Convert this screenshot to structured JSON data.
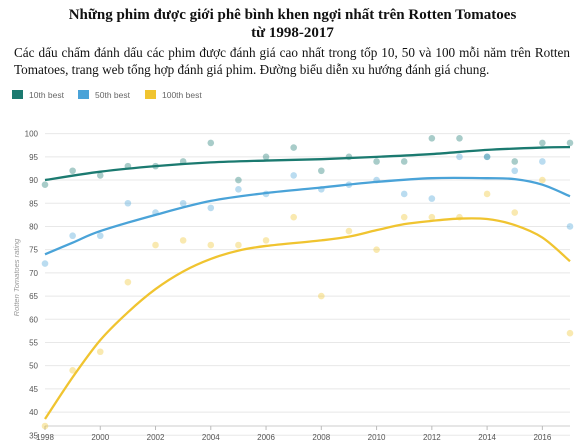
{
  "chart_data": {
    "type": "scatter",
    "title_line1": "Những phim được giới phê bình khen ngợi nhất trên Rotten Tomatoes",
    "title_line2": "từ 1998-2017",
    "subtitle": "Các dấu chấm đánh dấu các phim được đánh giá cao nhất trong tốp 10, 50 và 100 mỗi năm trên Rotten Tomatoes, trang web tổng hợp đánh giá phim. Đường biểu diễn xu hướng đánh giá chung.",
    "ylabel": "Rotten Tomatoes rating",
    "xlabel": "",
    "xlim": [
      1998,
      2017
    ],
    "ylim": [
      37,
      101
    ],
    "x_ticks": [
      1998,
      2000,
      2002,
      2004,
      2006,
      2008,
      2010,
      2012,
      2014,
      2016
    ],
    "y_ticks": [
      35,
      40,
      45,
      50,
      55,
      60,
      65,
      70,
      75,
      80,
      85,
      90,
      95,
      100
    ],
    "grid": true,
    "legend_position": "top-left",
    "series": [
      {
        "name": "10th best",
        "color": "#1b7a70",
        "points": [
          [
            1998,
            89
          ],
          [
            1999,
            92
          ],
          [
            2000,
            91
          ],
          [
            2001,
            93
          ],
          [
            2002,
            93
          ],
          [
            2003,
            94
          ],
          [
            2004,
            98
          ],
          [
            2005,
            90
          ],
          [
            2006,
            95
          ],
          [
            2007,
            97
          ],
          [
            2008,
            92
          ],
          [
            2009,
            95
          ],
          [
            2010,
            94
          ],
          [
            2011,
            94
          ],
          [
            2012,
            99
          ],
          [
            2013,
            99
          ],
          [
            2014,
            95
          ],
          [
            2015,
            94
          ],
          [
            2016,
            98
          ],
          [
            2017,
            98
          ]
        ],
        "trend": [
          [
            1998,
            90
          ],
          [
            2000,
            91.8
          ],
          [
            2002,
            93
          ],
          [
            2004,
            93.8
          ],
          [
            2006,
            94.2
          ],
          [
            2008,
            94.5
          ],
          [
            2010,
            95
          ],
          [
            2012,
            95.6
          ],
          [
            2014,
            96.5
          ],
          [
            2016,
            97
          ],
          [
            2017,
            97.1
          ]
        ]
      },
      {
        "name": "50th best",
        "color": "#4aa3d8",
        "points": [
          [
            1998,
            72
          ],
          [
            1999,
            78
          ],
          [
            2000,
            78
          ],
          [
            2001,
            85
          ],
          [
            2002,
            83
          ],
          [
            2003,
            85
          ],
          [
            2004,
            84
          ],
          [
            2005,
            88
          ],
          [
            2006,
            87
          ],
          [
            2007,
            91
          ],
          [
            2008,
            88
          ],
          [
            2009,
            89
          ],
          [
            2010,
            90
          ],
          [
            2011,
            87
          ],
          [
            2012,
            86
          ],
          [
            2013,
            95
          ],
          [
            2014,
            95
          ],
          [
            2015,
            92
          ],
          [
            2016,
            94
          ],
          [
            2017,
            80
          ]
        ],
        "trend": [
          [
            1998,
            74
          ],
          [
            1999,
            76.5
          ],
          [
            2000,
            79
          ],
          [
            2002,
            82.5
          ],
          [
            2004,
            85.5
          ],
          [
            2006,
            87.2
          ],
          [
            2008,
            88.4
          ],
          [
            2010,
            89.6
          ],
          [
            2012,
            90.4
          ],
          [
            2014,
            90.4
          ],
          [
            2015,
            90.2
          ],
          [
            2016,
            89
          ],
          [
            2017,
            86.5
          ]
        ]
      },
      {
        "name": "100th best",
        "color": "#f0c430",
        "points": [
          [
            1998,
            37
          ],
          [
            1999,
            49
          ],
          [
            2000,
            53
          ],
          [
            2001,
            68
          ],
          [
            2002,
            76
          ],
          [
            2003,
            77
          ],
          [
            2004,
            76
          ],
          [
            2005,
            76
          ],
          [
            2006,
            77
          ],
          [
            2007,
            82
          ],
          [
            2008,
            65
          ],
          [
            2009,
            79
          ],
          [
            2010,
            75
          ],
          [
            2011,
            82
          ],
          [
            2012,
            82
          ],
          [
            2013,
            82
          ],
          [
            2014,
            87
          ],
          [
            2015,
            83
          ],
          [
            2016,
            90
          ],
          [
            2017,
            57
          ]
        ],
        "trend": [
          [
            1998,
            38.5
          ],
          [
            1999,
            47.5
          ],
          [
            2000,
            55.5
          ],
          [
            2001,
            61.5
          ],
          [
            2002,
            66.5
          ],
          [
            2003,
            70.3
          ],
          [
            2004,
            73
          ],
          [
            2005,
            74.8
          ],
          [
            2006,
            75.8
          ],
          [
            2008,
            77
          ],
          [
            2009,
            77.8
          ],
          [
            2010,
            79.2
          ],
          [
            2011,
            80.5
          ],
          [
            2012,
            81.2
          ],
          [
            2013,
            81.7
          ],
          [
            2014,
            81.6
          ],
          [
            2015,
            80.3
          ],
          [
            2016,
            77.6
          ],
          [
            2017,
            72.5
          ]
        ]
      }
    ]
  }
}
